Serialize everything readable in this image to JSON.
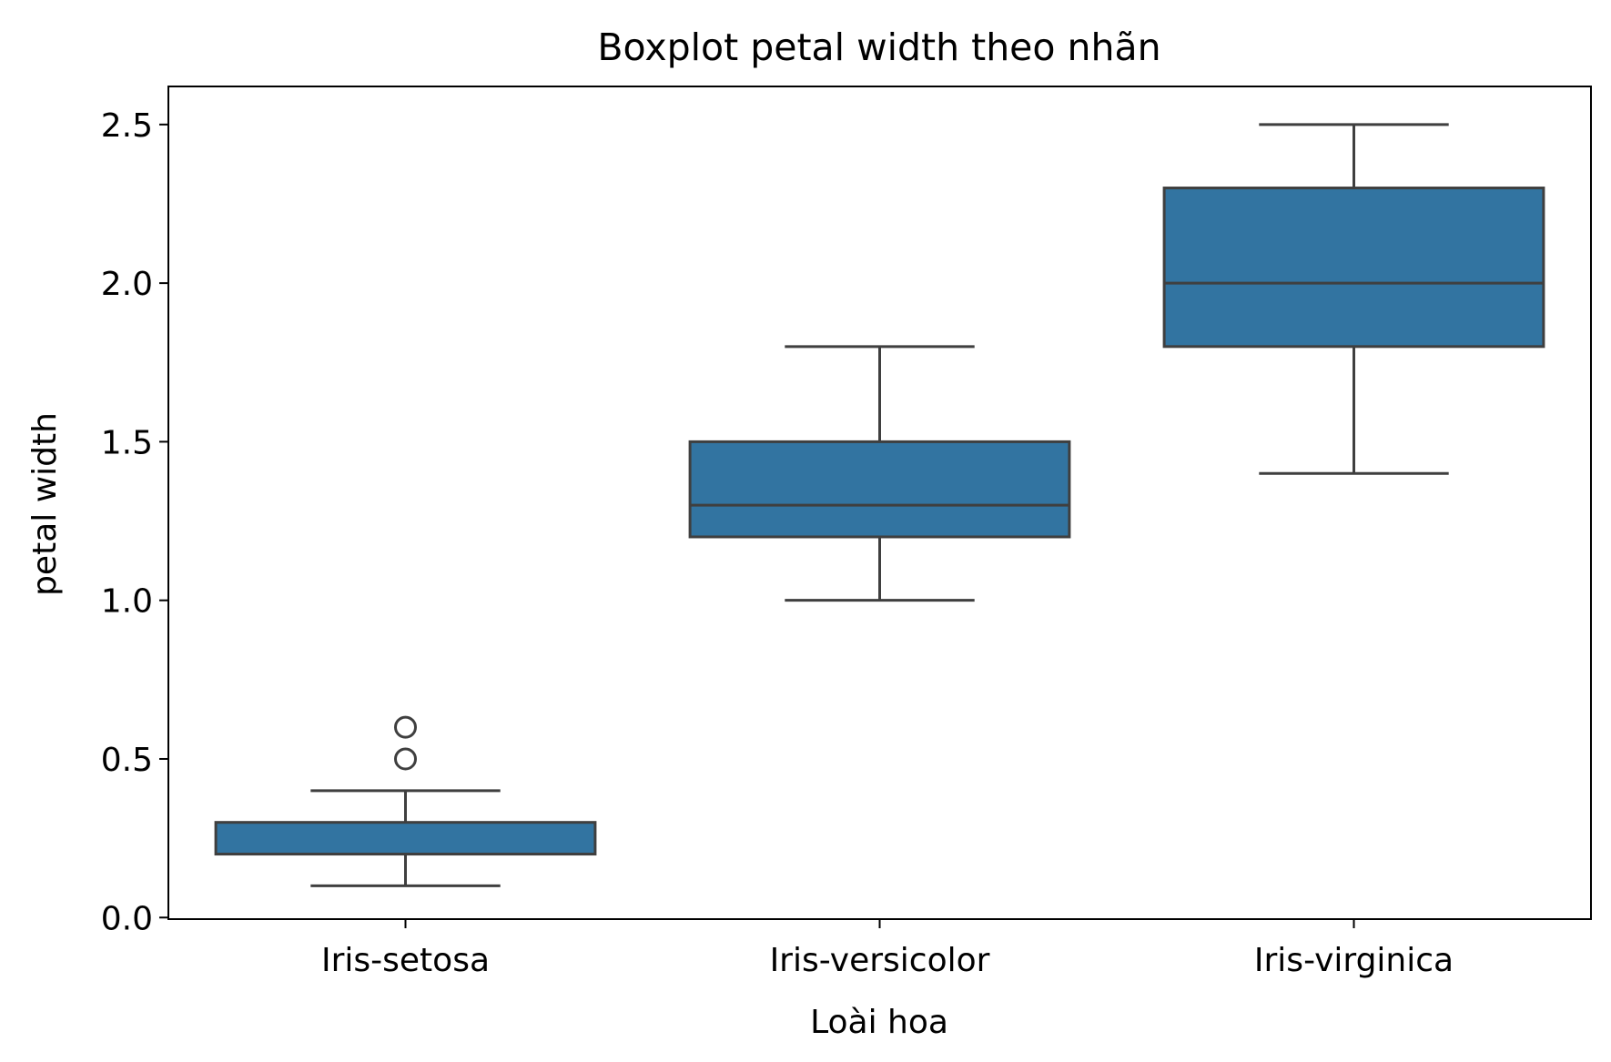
{
  "chart_data": {
    "type": "boxplot",
    "title": "Boxplot petal width theo nhãn",
    "xlabel": "Loài hoa",
    "ylabel": "petal width",
    "categories": [
      "Iris-setosa",
      "Iris-versicolor",
      "Iris-virginica"
    ],
    "ylim": [
      -0.005,
      2.62
    ],
    "yticks": [
      "0.0",
      "0.5",
      "1.0",
      "1.5",
      "2.0",
      "2.5"
    ],
    "grid": false,
    "boxes": [
      {
        "category": "Iris-setosa",
        "whisker_low": 0.1,
        "q1": 0.2,
        "median": 0.2,
        "q3": 0.3,
        "whisker_high": 0.4,
        "outliers": [
          0.5,
          0.6
        ]
      },
      {
        "category": "Iris-versicolor",
        "whisker_low": 1.0,
        "q1": 1.2,
        "median": 1.3,
        "q3": 1.5,
        "whisker_high": 1.8,
        "outliers": []
      },
      {
        "category": "Iris-virginica",
        "whisker_low": 1.4,
        "q1": 1.8,
        "median": 2.0,
        "q3": 2.3,
        "whisker_high": 2.5,
        "outliers": []
      }
    ],
    "colors": {
      "box_fill": "#3274a1",
      "box_edge": "#3f3f3f",
      "axis": "#000000"
    }
  }
}
